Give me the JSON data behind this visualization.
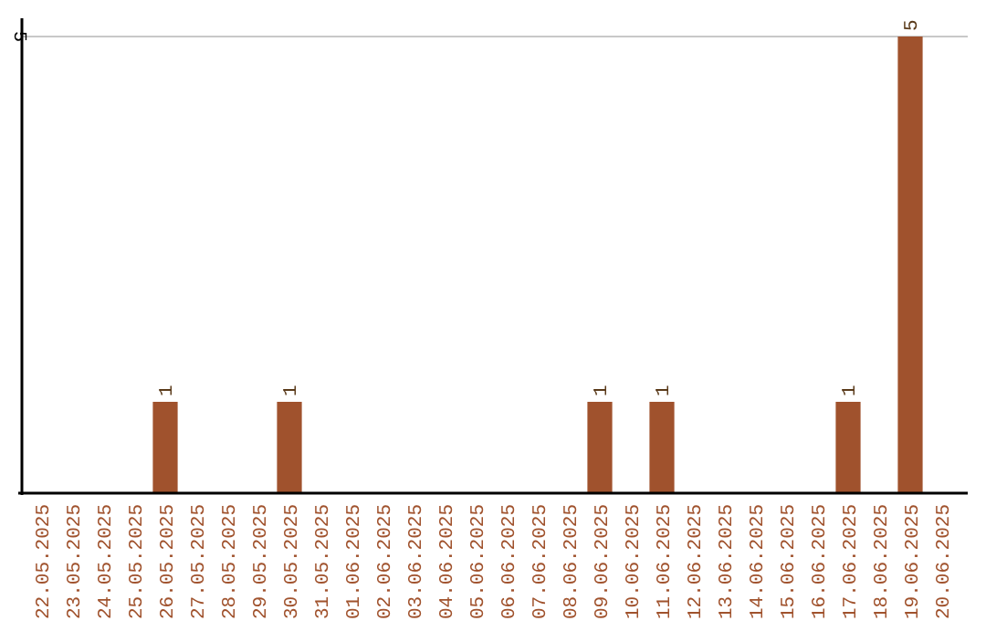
{
  "chart_data": {
    "type": "bar",
    "categories": [
      "22.05.2025",
      "23.05.2025",
      "24.05.2025",
      "25.05.2025",
      "26.05.2025",
      "27.05.2025",
      "28.05.2025",
      "29.05.2025",
      "30.05.2025",
      "31.05.2025",
      "01.06.2025",
      "02.06.2025",
      "03.06.2025",
      "04.06.2025",
      "05.06.2025",
      "06.06.2025",
      "07.06.2025",
      "08.06.2025",
      "09.06.2025",
      "10.06.2025",
      "11.06.2025",
      "12.06.2025",
      "13.06.2025",
      "14.06.2025",
      "15.06.2025",
      "16.06.2025",
      "17.06.2025",
      "18.06.2025",
      "19.06.2025",
      "20.06.2025"
    ],
    "values": [
      0,
      0,
      0,
      0,
      1,
      0,
      0,
      0,
      1,
      0,
      0,
      0,
      0,
      0,
      0,
      0,
      0,
      0,
      1,
      0,
      1,
      0,
      0,
      0,
      0,
      0,
      1,
      0,
      5,
      0
    ],
    "value_labels": [
      null,
      null,
      null,
      null,
      "1",
      null,
      null,
      null,
      "1",
      null,
      null,
      null,
      null,
      null,
      null,
      null,
      null,
      null,
      "1",
      null,
      "1",
      null,
      null,
      null,
      null,
      null,
      "1",
      null,
      "5",
      null
    ],
    "color": "#a0522d",
    "ylim": [
      0,
      5.2
    ],
    "yticks": [
      5
    ],
    "grid": "y"
  }
}
